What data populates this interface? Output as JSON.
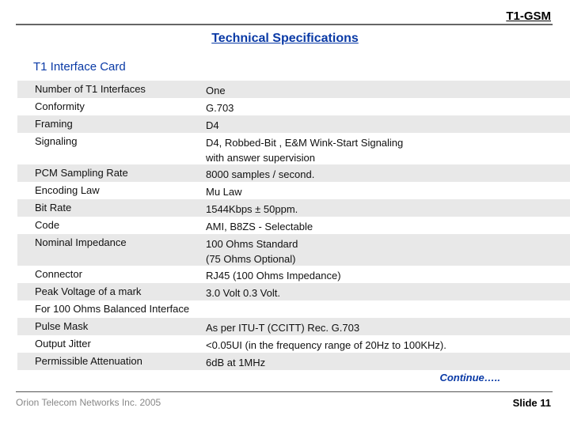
{
  "header": {
    "brand": "T1-GSM",
    "title": "Technical Specifications"
  },
  "section": {
    "title": "T1 Interface Card"
  },
  "specs": [
    {
      "label": "Number of T1 Interfaces",
      "value": "One"
    },
    {
      "label": "Conformity",
      "value": "G.703"
    },
    {
      "label": "Framing",
      "value": "D4"
    },
    {
      "label": "Signaling",
      "value": "D4, Robbed-Bit , E&M Wink-Start  Signaling",
      "value2": "with answer supervision"
    },
    {
      "label": "PCM Sampling Rate",
      "value": "8000 samples / second."
    },
    {
      "label": "Encoding Law",
      "value": "Mu Law"
    },
    {
      "label": "Bit Rate",
      "value": "1544Kbps ± 50ppm."
    },
    {
      "label": "Code",
      "value": "AMI, B8ZS - Selectable"
    },
    {
      "label": "Nominal Impedance",
      "value": "100 Ohms  Standard",
      "value2": "(75 Ohms  Optional)"
    },
    {
      "label": "Connector",
      "value": "RJ45 (100 Ohms Impedance)"
    },
    {
      "label": "Peak Voltage of a mark",
      "value": "3.0 Volt  0.3 Volt."
    },
    {
      "label": "For 100 Ohms Balanced Interface",
      "value": ""
    },
    {
      "label": "Pulse Mask",
      "value": "As per ITU-T (CCITT) Rec. G.703"
    },
    {
      "label": "Output Jitter",
      "value": "<0.05UI (in the frequency range of 20Hz to 100KHz)."
    },
    {
      "label": "Permissible Attenuation",
      "value": "6dB at 1MHz"
    }
  ],
  "continue_text": "Continue…..",
  "footer": {
    "company": "Orion Telecom Networks Inc. 2005",
    "slide": "Slide 11"
  }
}
